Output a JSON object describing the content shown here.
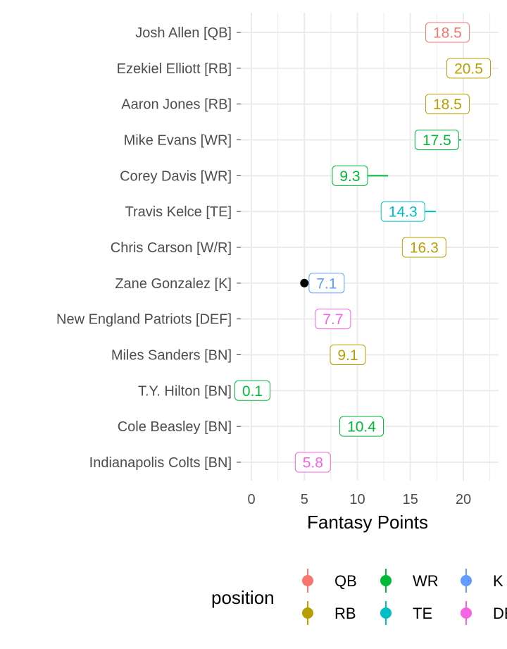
{
  "chart_data": {
    "type": "point-range",
    "xlabel": "Fantasy Points",
    "ylabel": "",
    "xlim": [
      -1,
      23
    ],
    "xticks": [
      0,
      5,
      10,
      15,
      20
    ],
    "grid": true,
    "legend": {
      "title": "position",
      "placement": "bottom",
      "entries": [
        {
          "name": "QB",
          "color": "#F8766D"
        },
        {
          "name": "RB",
          "color": "#B79F00"
        },
        {
          "name": "WR",
          "color": "#00BA38"
        },
        {
          "name": "TE",
          "color": "#00BFC4"
        },
        {
          "name": "K",
          "color": "#619CFF"
        },
        {
          "name": "DEF",
          "color": "#F564E3"
        }
      ]
    },
    "players": [
      {
        "label": "Josh Allen [QB]",
        "position": "QB",
        "points": 18.5,
        "points_label": "18.5",
        "low": 18.5,
        "high": 18.5,
        "color": "#F8766D"
      },
      {
        "label": "Ezekiel Elliott [RB]",
        "position": "RB",
        "points": 20.5,
        "points_label": "20.5",
        "low": 20.5,
        "high": 20.5,
        "color": "#B79F00"
      },
      {
        "label": "Aaron Jones [RB]",
        "position": "RB",
        "points": 18.5,
        "points_label": "18.5",
        "low": 18.5,
        "high": 18.5,
        "color": "#B79F00"
      },
      {
        "label": "Mike Evans [WR]",
        "position": "WR",
        "points": 17.5,
        "points_label": "17.5",
        "low": 17.5,
        "high": 19.8,
        "color": "#00BA38"
      },
      {
        "label": "Corey Davis [WR]",
        "position": "WR",
        "points": 9.3,
        "points_label": "9.3",
        "low": 9.3,
        "high": 12.9,
        "color": "#00BA38"
      },
      {
        "label": "Travis Kelce [TE]",
        "position": "TE",
        "points": 14.3,
        "points_label": "14.3",
        "low": 14.3,
        "high": 17.4,
        "color": "#00BFC4"
      },
      {
        "label": "Chris Carson [W/R]",
        "position": "RB",
        "points": 16.3,
        "points_label": "16.3",
        "low": 16.3,
        "high": 16.3,
        "color": "#B79F00"
      },
      {
        "label": "Zane Gonzalez [K]",
        "position": "K",
        "points": 7.1,
        "points_label": "7.1",
        "low": 5.0,
        "high": 7.1,
        "color": "#619CFF",
        "marker": 5.0,
        "marker_color": "#000000"
      },
      {
        "label": "New England Patriots [DEF]",
        "position": "DEF",
        "points": 7.7,
        "points_label": "7.7",
        "low": 7.7,
        "high": 7.7,
        "color": "#F564E3"
      },
      {
        "label": "Miles Sanders [BN]",
        "position": "RB",
        "points": 9.1,
        "points_label": "9.1",
        "low": 7.8,
        "high": 9.1,
        "color": "#B79F00"
      },
      {
        "label": "T.Y. Hilton [BN]",
        "position": "WR",
        "points": 0.1,
        "points_label": "0.1",
        "low": 0.1,
        "high": 0.1,
        "color": "#00BA38"
      },
      {
        "label": "Cole Beasley [BN]",
        "position": "WR",
        "points": 10.4,
        "points_label": "10.4",
        "low": 10.4,
        "high": 10.4,
        "color": "#00BA38"
      },
      {
        "label": "Indianapolis Colts [BN]",
        "position": "DEF",
        "points": 5.8,
        "points_label": "5.8",
        "low": 5.8,
        "high": 5.8,
        "color": "#F564E3"
      }
    ]
  }
}
